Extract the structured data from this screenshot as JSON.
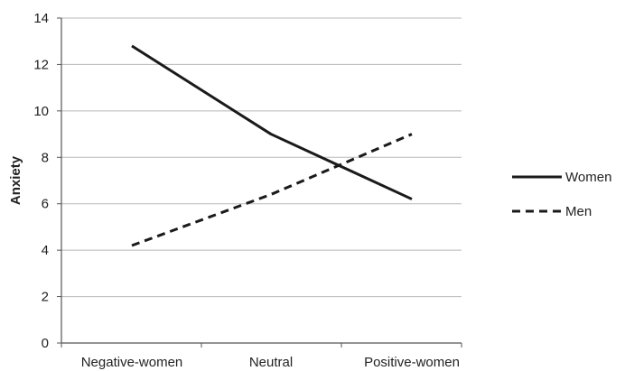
{
  "chart_data": {
    "type": "line",
    "title": "",
    "xlabel": "",
    "ylabel": "Anxiety",
    "categories": [
      "Negative-women",
      "Neutral",
      "Positive-women"
    ],
    "ylim": [
      0,
      14
    ],
    "yticks": [
      0,
      2,
      4,
      6,
      8,
      10,
      12,
      14
    ],
    "grid": true,
    "legend": "right",
    "series": [
      {
        "name": "Women",
        "values": [
          12.8,
          9.0,
          6.2
        ],
        "color": "#1a1a1a",
        "style": "solid"
      },
      {
        "name": "Men",
        "values": [
          4.2,
          6.4,
          9.0
        ],
        "color": "#1a1a1a",
        "style": "dashed"
      }
    ]
  }
}
